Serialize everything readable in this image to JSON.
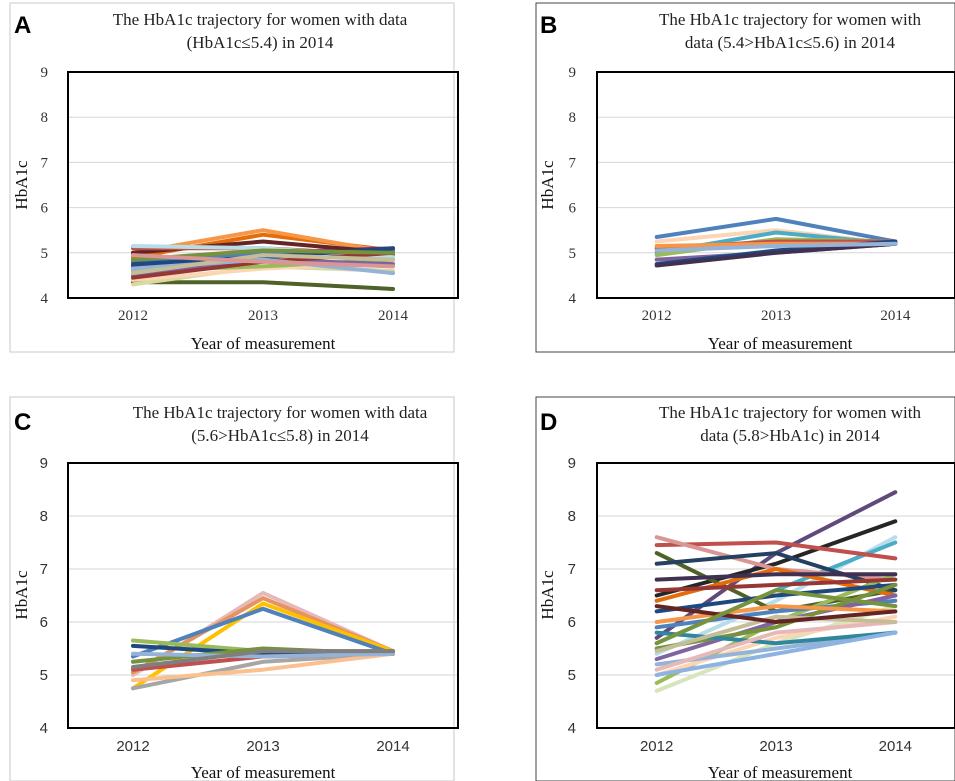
{
  "chart_data": [
    {
      "panel_letter": "A",
      "type": "line",
      "title_lines": [
        "The HbA1c trajectory for women with data",
        "(HbA1c≤5.4) in 2014"
      ],
      "xlabel": "Year of measurement",
      "ylabel": "HbA1c",
      "categories": [
        "2012",
        "2013",
        "2014"
      ],
      "ylim": [
        4,
        9
      ],
      "yticks": [
        "4",
        "5",
        "6",
        "7",
        "8",
        "9"
      ],
      "tick_font": "serif",
      "grid": true,
      "series": [
        {
          "color": "#4f6228",
          "values": [
            4.35,
            4.35,
            4.2
          ]
        },
        {
          "color": "#d9d9a0",
          "values": [
            4.3,
            4.7,
            4.6
          ]
        },
        {
          "color": "#fcd5b4",
          "values": [
            4.4,
            4.65,
            4.8
          ]
        },
        {
          "color": "#e46c0a",
          "values": [
            4.9,
            5.4,
            5.05
          ]
        },
        {
          "color": "#f79646",
          "values": [
            5.0,
            5.5,
            5.0
          ]
        },
        {
          "color": "#7030a0",
          "values": [
            4.7,
            5.0,
            5.1
          ]
        },
        {
          "color": "#4f81bd",
          "values": [
            4.8,
            5.0,
            5.05
          ]
        },
        {
          "color": "#632523",
          "values": [
            5.0,
            5.25,
            5.0
          ]
        },
        {
          "color": "#c0504d",
          "values": [
            5.1,
            5.1,
            4.95
          ]
        },
        {
          "color": "#9bbb59",
          "values": [
            4.6,
            4.7,
            4.85
          ]
        },
        {
          "color": "#b7dee8",
          "values": [
            5.15,
            5.1,
            4.9
          ]
        },
        {
          "color": "#8064a2",
          "values": [
            4.5,
            4.85,
            4.75
          ]
        },
        {
          "color": "#1f497d",
          "values": [
            4.75,
            4.9,
            5.1
          ]
        },
        {
          "color": "#953735",
          "values": [
            4.45,
            4.8,
            5.0
          ]
        },
        {
          "color": "#95b3d7",
          "values": [
            4.65,
            4.85,
            4.55
          ]
        },
        {
          "color": "#c4bd97",
          "values": [
            4.55,
            4.95,
            4.85
          ]
        },
        {
          "color": "#76923c",
          "values": [
            4.85,
            5.05,
            5.0
          ]
        },
        {
          "color": "#d99694",
          "values": [
            4.95,
            4.8,
            4.7
          ]
        }
      ]
    },
    {
      "panel_letter": "B",
      "type": "line",
      "title_lines": [
        "The HbA1c trajectory for women with",
        "data (5.4>HbA1c≤5.6) in 2014"
      ],
      "xlabel": "Year of measurement",
      "ylabel": "HbA1c",
      "categories": [
        "2012",
        "2013",
        "2014"
      ],
      "ylim": [
        4,
        9
      ],
      "yticks": [
        "4",
        "5",
        "6",
        "7",
        "8",
        "9"
      ],
      "tick_font": "serif",
      "grid": true,
      "series": [
        {
          "color": "#4f81bd",
          "values": [
            5.35,
            5.75,
            5.25
          ]
        },
        {
          "color": "#fcd5b4",
          "values": [
            5.25,
            5.5,
            5.2
          ]
        },
        {
          "color": "#4bacc6",
          "values": [
            5.0,
            5.45,
            5.2
          ]
        },
        {
          "color": "#9bbb59",
          "values": [
            4.95,
            5.3,
            5.25
          ]
        },
        {
          "color": "#c0504d",
          "values": [
            5.1,
            5.25,
            5.25
          ]
        },
        {
          "color": "#f79646",
          "values": [
            5.15,
            5.2,
            5.2
          ]
        },
        {
          "color": "#8064a2",
          "values": [
            4.85,
            5.0,
            5.2
          ]
        },
        {
          "color": "#1f497d",
          "values": [
            4.75,
            5.05,
            5.25
          ]
        },
        {
          "color": "#403152",
          "values": [
            4.72,
            5.0,
            5.2
          ]
        },
        {
          "color": "#95b3d7",
          "values": [
            5.05,
            5.15,
            5.2
          ]
        }
      ]
    },
    {
      "panel_letter": "C",
      "type": "line",
      "title_lines": [
        "The HbA1c trajectory for women with data",
        "(5.6>HbA1c≤5.8) in 2014"
      ],
      "xlabel": "Year of measurement",
      "ylabel": "HbA1c",
      "categories": [
        "2012",
        "2013",
        "2014"
      ],
      "ylim": [
        4,
        9
      ],
      "yticks": [
        "4",
        "5",
        "6",
        "7",
        "8",
        "9"
      ],
      "tick_font": "sans",
      "grid": true,
      "series": [
        {
          "color": "#e6b9b8",
          "values": [
            5.0,
            6.55,
            5.45
          ]
        },
        {
          "color": "#e6935e",
          "values": [
            5.05,
            6.45,
            5.45
          ]
        },
        {
          "color": "#ffc000",
          "values": [
            4.75,
            6.35,
            5.45
          ]
        },
        {
          "color": "#4f81bd",
          "values": [
            5.35,
            6.25,
            5.4
          ]
        },
        {
          "color": "#9bbb59",
          "values": [
            5.65,
            5.45,
            5.45
          ]
        },
        {
          "color": "#1f497d",
          "values": [
            5.55,
            5.4,
            5.4
          ]
        },
        {
          "color": "#a6a6a6",
          "values": [
            4.75,
            5.25,
            5.4
          ]
        },
        {
          "color": "#c0504d",
          "values": [
            5.1,
            5.35,
            5.4
          ]
        },
        {
          "color": "#fac090",
          "values": [
            4.9,
            5.1,
            5.4
          ]
        },
        {
          "color": "#76923c",
          "values": [
            5.25,
            5.5,
            5.4
          ]
        },
        {
          "color": "#95b3d7",
          "values": [
            5.4,
            5.35,
            5.4
          ]
        },
        {
          "color": "#7f7f7f",
          "values": [
            5.15,
            5.45,
            5.45
          ]
        }
      ]
    },
    {
      "panel_letter": "D",
      "type": "line",
      "title_lines": [
        "The HbA1c trajectory for women with",
        "data (5.8>HbA1c) in 2014"
      ],
      "xlabel": "Year of measurement",
      "ylabel": "HbA1c",
      "categories": [
        "2012",
        "2013",
        "2014"
      ],
      "ylim": [
        4,
        9
      ],
      "yticks": [
        "4",
        "5",
        "6",
        "7",
        "8",
        "9"
      ],
      "tick_font": "sans",
      "grid": true,
      "series": [
        {
          "color": "#604a7b",
          "values": [
            5.7,
            7.3,
            8.45
          ]
        },
        {
          "color": "#262626",
          "values": [
            6.5,
            7.1,
            7.9
          ]
        },
        {
          "color": "#b7dee8",
          "values": [
            5.4,
            6.4,
            7.6
          ]
        },
        {
          "color": "#4bacc6",
          "values": [
            5.6,
            6.6,
            7.5
          ]
        },
        {
          "color": "#c0504d",
          "values": [
            7.45,
            7.5,
            7.2
          ]
        },
        {
          "color": "#d99694",
          "values": [
            7.6,
            7.0,
            6.8
          ]
        },
        {
          "color": "#4f6228",
          "values": [
            7.3,
            6.2,
            6.6
          ]
        },
        {
          "color": "#254061",
          "values": [
            7.1,
            7.3,
            6.6
          ]
        },
        {
          "color": "#e46c0a",
          "values": [
            6.4,
            7.0,
            6.5
          ]
        },
        {
          "color": "#9bbb59",
          "values": [
            4.85,
            6.0,
            6.9
          ]
        },
        {
          "color": "#d7e4bc",
          "values": [
            4.7,
            5.6,
            6.3
          ]
        },
        {
          "color": "#fcd5b4",
          "values": [
            5.0,
            5.7,
            6.1
          ]
        },
        {
          "color": "#4f81bd",
          "values": [
            5.9,
            6.2,
            6.4
          ]
        },
        {
          "color": "#8064a2",
          "values": [
            5.3,
            6.0,
            6.5
          ]
        },
        {
          "color": "#1f497d",
          "values": [
            6.2,
            6.5,
            6.7
          ]
        },
        {
          "color": "#76923c",
          "values": [
            5.5,
            5.9,
            6.7
          ]
        },
        {
          "color": "#953735",
          "values": [
            6.6,
            6.7,
            6.8
          ]
        },
        {
          "color": "#95b3d7",
          "values": [
            5.2,
            5.5,
            5.8
          ]
        },
        {
          "color": "#31859c",
          "values": [
            5.8,
            5.6,
            5.8
          ]
        },
        {
          "color": "#f79646",
          "values": [
            6.0,
            6.3,
            6.2
          ]
        },
        {
          "color": "#e6b9b8",
          "values": [
            5.1,
            5.8,
            6.0
          ]
        },
        {
          "color": "#403152",
          "values": [
            6.8,
            6.9,
            6.9
          ]
        },
        {
          "color": "#c4bd97",
          "values": [
            5.45,
            6.1,
            6.0
          ]
        },
        {
          "color": "#8db3e2",
          "values": [
            5.0,
            5.4,
            5.8
          ]
        },
        {
          "color": "#632523",
          "values": [
            6.3,
            6.0,
            6.2
          ]
        },
        {
          "color": "#77933c",
          "values": [
            5.6,
            6.6,
            6.3
          ]
        }
      ]
    }
  ]
}
